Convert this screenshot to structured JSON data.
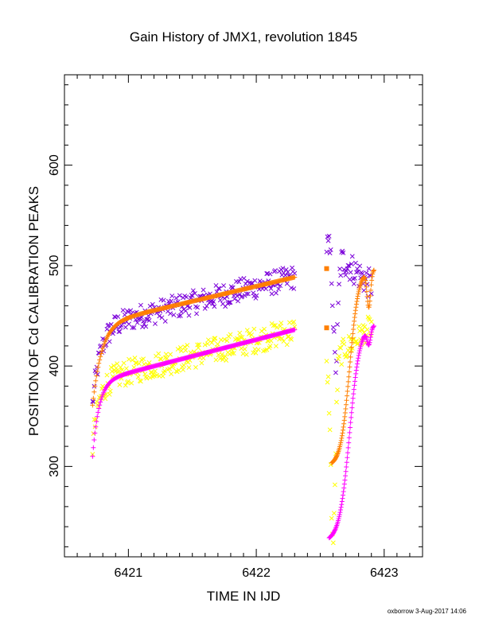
{
  "chart_data": {
    "type": "scatter",
    "title": "Gain History of JMX1, revolution 1845",
    "xlabel": "TIME IN IJD",
    "ylabel": "POSITION OF Cd CALIBRATION PEAKS",
    "footer": "oxborrow  3-Aug-2017 14:06",
    "xlim": [
      6420.5,
      6423.3
    ],
    "ylim": [
      210,
      690
    ],
    "xticks": [
      6421,
      6422,
      6423
    ],
    "xtick_labels": [
      "6421",
      "6422",
      "6423"
    ],
    "yticks": [
      300,
      400,
      500,
      600
    ],
    "ytick_labels": [
      "300",
      "400",
      "500",
      "600"
    ],
    "grid": false,
    "series": [
      {
        "marker": "x",
        "color": "#7b00d9",
        "segments": [
          {
            "x0": 6420.72,
            "x1": 6422.3,
            "model": "sat",
            "params": [
              361,
              438,
              0.06,
              32
            ],
            "noise": 12,
            "n": 240
          },
          {
            "x0": 6422.55,
            "x1": 6422.9,
            "model": "dip",
            "params": [
              520,
              480,
              400,
              6422.62
            ],
            "noise": 15,
            "n": 55
          }
        ]
      },
      {
        "marker": "x",
        "color": "#ffff00",
        "segments": [
          {
            "x0": 6420.72,
            "x1": 6422.3,
            "model": "sat",
            "params": [
              320,
              385,
              0.05,
              32
            ],
            "noise": 13,
            "n": 240
          },
          {
            "x0": 6422.55,
            "x1": 6422.9,
            "model": "dip",
            "params": [
              400,
              440,
              225,
              6422.6
            ],
            "noise": 12,
            "n": 55
          }
        ]
      },
      {
        "marker": "+",
        "color": "#ff7f00",
        "segments": [
          {
            "x0": 6420.72,
            "x1": 6422.3,
            "model": "sat",
            "params": [
              361,
              441,
              0.07,
              30
            ],
            "noise": 0,
            "n": 260
          },
          {
            "x0": 6422.59,
            "x1": 6422.92,
            "model": "rise",
            "params": [
              300,
              497,
              6422.73,
              0.035,
              18,
              6422.88,
              0.02
            ],
            "noise": 0,
            "n": 95
          }
        ],
        "isolated": [
          {
            "x": 6422.55,
            "y": 497
          },
          {
            "x": 6422.55,
            "y": 438
          }
        ]
      },
      {
        "marker": "+",
        "color": "#ff00ff",
        "segments": [
          {
            "x0": 6420.72,
            "x1": 6422.3,
            "model": "sat",
            "params": [
              310,
              384,
              0.05,
              33
            ],
            "noise": 0,
            "n": 260
          },
          {
            "x0": 6422.57,
            "x1": 6422.92,
            "model": "rise",
            "params": [
              225,
              442,
              6422.73,
              0.04,
              8,
              6422.88,
              0.02
            ],
            "noise": 0,
            "n": 95
          }
        ]
      }
    ]
  }
}
